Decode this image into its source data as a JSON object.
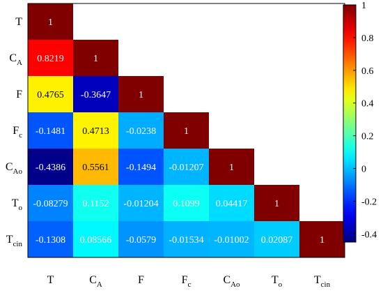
{
  "chart_data": {
    "type": "heatmap",
    "variables": [
      {
        "main": "T",
        "sub": ""
      },
      {
        "main": "C",
        "sub": "A"
      },
      {
        "main": "F",
        "sub": ""
      },
      {
        "main": "F",
        "sub": "c"
      },
      {
        "main": "C",
        "sub": "Ao"
      },
      {
        "main": "T",
        "sub": "o"
      },
      {
        "main": "T",
        "sub": "cin"
      }
    ],
    "matrix": [
      [
        "1"
      ],
      [
        "0.8219",
        "1"
      ],
      [
        "0.4765",
        "-0.3647",
        "1"
      ],
      [
        "-0.1481",
        "0.4713",
        "-0.0238",
        "1"
      ],
      [
        "-0.4386",
        "0.5561",
        "-0.1494",
        "-0.01207",
        "1"
      ],
      [
        "-0.08279",
        "0.1152",
        "-0.01204",
        "0.1099",
        "0.04417",
        "1"
      ],
      [
        "-0.1308",
        "0.08566",
        "-0.0579",
        "-0.01534",
        "-0.01002",
        "0.02087",
        "1"
      ]
    ],
    "colorbar": {
      "range": [
        -0.45,
        1
      ],
      "ticks": [
        1,
        0.8,
        0.6,
        0.4,
        0.2,
        0,
        -0.2,
        -0.4
      ],
      "tick_labels": [
        "1",
        "0.8",
        "0.6",
        "0.4",
        "0.2",
        "0",
        "-0.2",
        "-0.4"
      ],
      "colormap": "jet"
    },
    "title": "",
    "xlabel": "",
    "ylabel": ""
  }
}
